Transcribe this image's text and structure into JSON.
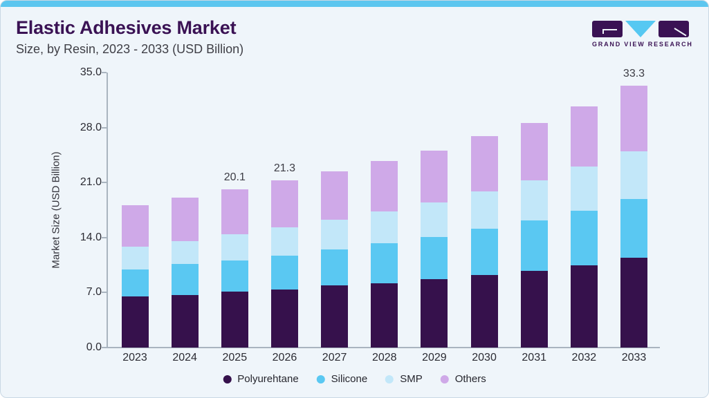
{
  "header": {
    "title": "Elastic Adhesives Market",
    "subtitle": "Size, by Resin, 2023 - 2033 (USD Billion)"
  },
  "logo": {
    "text": "GRAND VIEW RESEARCH",
    "brand_purple": "#3A1254",
    "brand_cyan": "#56C8F2"
  },
  "colors": {
    "card_background": "#EFF5FA",
    "top_accent_bar": "#5CC6EF",
    "axis": "#A9B4BF",
    "tick_text": "#2B2B33",
    "title_text": "#3A1254"
  },
  "chart_data": {
    "type": "bar",
    "stacked": true,
    "title": "Elastic Adhesives Market Size, by Resin, 2023 - 2033 (USD Billion)",
    "xlabel": "",
    "ylabel": "Market Size (USD Billion)",
    "ylim": [
      0,
      35
    ],
    "yticks": [
      35,
      28,
      21,
      14,
      7,
      0
    ],
    "ytick_labels": [
      "35.0",
      "28.0",
      "21.0",
      "14.0",
      "7.0",
      "0.0"
    ],
    "grid": false,
    "legend_position": "bottom",
    "categories": [
      "2023",
      "2024",
      "2025",
      "2026",
      "2027",
      "2028",
      "2029",
      "2030",
      "2031",
      "2032",
      "2033"
    ],
    "series": [
      {
        "name": "Polyurehtane",
        "color": "#36114C",
        "values": [
          6.5,
          6.7,
          7.1,
          7.4,
          7.9,
          8.2,
          8.7,
          9.2,
          9.8,
          10.5,
          11.4
        ]
      },
      {
        "name": "Silicone",
        "color": "#5AC8F2",
        "values": [
          3.4,
          3.9,
          4.0,
          4.3,
          4.6,
          5.1,
          5.4,
          5.9,
          6.4,
          6.9,
          7.5
        ]
      },
      {
        "name": "SMP",
        "color": "#C2E7F9",
        "values": [
          2.9,
          2.9,
          3.3,
          3.6,
          3.8,
          4.0,
          4.4,
          4.8,
          5.1,
          5.6,
          6.1
        ]
      },
      {
        "name": "Others",
        "color": "#CFA9E8",
        "values": [
          5.3,
          5.6,
          5.7,
          6.0,
          6.1,
          6.4,
          6.6,
          7.0,
          7.3,
          7.7,
          8.3
        ]
      }
    ],
    "totals": [
      18.1,
      19.1,
      20.1,
      21.3,
      22.4,
      23.7,
      25.1,
      26.9,
      28.6,
      30.7,
      33.3
    ],
    "bar_total_labels": [
      "",
      "",
      "20.1",
      "21.3",
      "",
      "",
      "",
      "",
      "",
      "",
      "33.3"
    ]
  }
}
